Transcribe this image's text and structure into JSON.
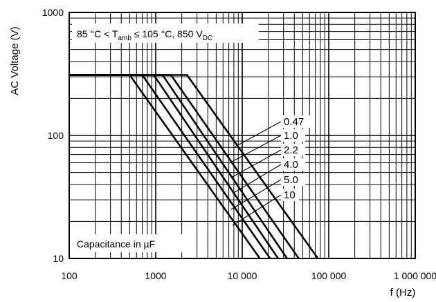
{
  "chart_data": {
    "type": "line",
    "title": "",
    "condition": {
      "prefix": "85 °C < T",
      "sub1": "amb",
      "middle": " ≤ 105 °C, 850 V",
      "sub2": "DC"
    },
    "legend_title": "Capacitance in µF",
    "xlabel": "f (Hz)",
    "ylabel": "AC Voltage (V)",
    "xscale": "log",
    "yscale": "log",
    "xlim": [
      100,
      1000000
    ],
    "ylim": [
      10,
      1000
    ],
    "grid": true,
    "x_ticks": [
      {
        "value": 100,
        "label": "100"
      },
      {
        "value": 1000,
        "label": "1000"
      },
      {
        "value": 10000,
        "label": "10 000"
      },
      {
        "value": 100000,
        "label": "100 000"
      },
      {
        "value": 1000000,
        "label": "1 000 000"
      }
    ],
    "y_ticks": [
      {
        "value": 10,
        "label": "10"
      },
      {
        "value": 100,
        "label": "100"
      },
      {
        "value": 1000,
        "label": "1000"
      }
    ],
    "series": [
      {
        "name": "0.47",
        "points": [
          [
            100,
            310
          ],
          [
            2300,
            310
          ],
          [
            75000,
            10
          ]
        ]
      },
      {
        "name": "1.0",
        "points": [
          [
            100,
            310
          ],
          [
            1500,
            310
          ],
          [
            45000,
            10
          ]
        ]
      },
      {
        "name": "2.2",
        "points": [
          [
            100,
            310
          ],
          [
            1200,
            310
          ],
          [
            33000,
            10
          ]
        ]
      },
      {
        "name": "4.0",
        "points": [
          [
            100,
            310
          ],
          [
            950,
            310
          ],
          [
            26000,
            10
          ]
        ]
      },
      {
        "name": "5.0",
        "points": [
          [
            100,
            310
          ],
          [
            700,
            310
          ],
          [
            21000,
            10
          ]
        ]
      },
      {
        "name": "10",
        "points": [
          [
            100,
            310
          ],
          [
            500,
            310
          ],
          [
            16000,
            10
          ]
        ]
      }
    ],
    "label_leaders": [
      {
        "name": "0.47",
        "text_x": 408,
        "text_y": 181,
        "curve_x": 340,
        "curve_y": 212
      },
      {
        "name": "1.0",
        "text_x": 408,
        "text_y": 201,
        "curve_x": 335,
        "curve_y": 234
      },
      {
        "name": "2.2",
        "text_x": 408,
        "text_y": 222,
        "curve_x": 334,
        "curve_y": 257
      },
      {
        "name": "4.0",
        "text_x": 408,
        "text_y": 243,
        "curve_x": 336,
        "curve_y": 280
      },
      {
        "name": "5.0",
        "text_x": 408,
        "text_y": 265,
        "curve_x": 334,
        "curve_y": 303
      },
      {
        "name": "10",
        "text_x": 408,
        "text_y": 287,
        "curve_x": 336,
        "curve_y": 326
      }
    ]
  }
}
